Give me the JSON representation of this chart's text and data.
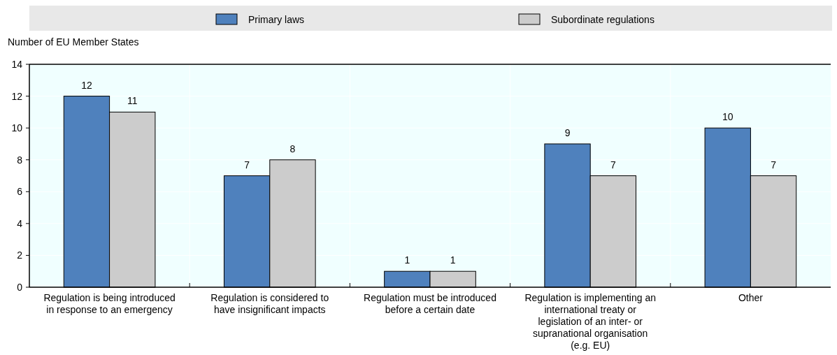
{
  "chart_data": {
    "type": "bar",
    "ylabel": "Number of EU Member States",
    "categories": [
      "Regulation is being introduced in response to an emergency",
      "Regulation is considered to have insignificant impacts",
      "Regulation must be introduced before a certain date",
      "Regulation is implementing an international treaty or legislation of an inter- or supranational organisation (e.g. EU)",
      "Other"
    ],
    "series": [
      {
        "name": "Primary laws",
        "color": "#4f81bd",
        "values": [
          12,
          7,
          1,
          9,
          10
        ]
      },
      {
        "name": "Subordinate regulations",
        "color": "#cccccc",
        "values": [
          11,
          8,
          1,
          7,
          7
        ]
      }
    ],
    "ylim": [
      0,
      14
    ],
    "yticks": [
      0,
      2,
      4,
      6,
      8,
      10,
      12,
      14
    ],
    "grid": true,
    "legend": "top",
    "data_labels": true
  }
}
